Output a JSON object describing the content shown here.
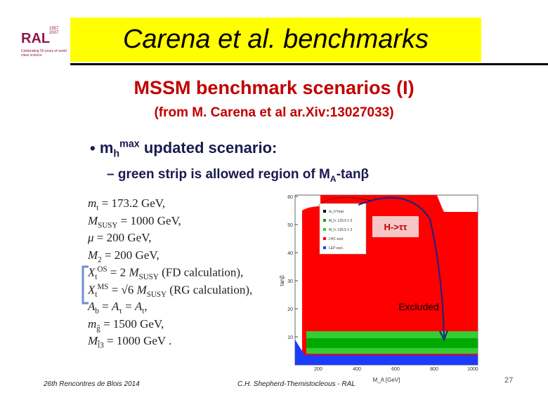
{
  "logo": {
    "name": "RAL",
    "years": "1957 2007",
    "tagline": "Celebrating 50 years of world class science"
  },
  "header": {
    "title": "Carena et al. benchmarks"
  },
  "slide": {
    "heading": "MSSM benchmark scenarios (I)",
    "source": "(from M. Carena et al ar.Xiv:13027033)",
    "bullet": {
      "symbol": "•",
      "parts": [
        {
          "t": "m",
          "sub": "h",
          "sup": "max"
        },
        {
          "t": " updated scenario:"
        }
      ]
    },
    "subbullet": {
      "symbol": "–",
      "parts": [
        {
          "t": "green strip is allowed region of M",
          "sub": "A"
        },
        {
          "t": "-tanβ"
        }
      ]
    },
    "equations": [
      [
        {
          "t": "m",
          "sub": "t",
          "i": true
        },
        {
          "t": " = 173.2 GeV,"
        }
      ],
      [
        {
          "t": "M",
          "sub": "SUSY",
          "i": true
        },
        {
          "t": " = 1000 GeV,"
        }
      ],
      [
        {
          "t": "μ",
          "i": true
        },
        {
          "t": " = 200 GeV,"
        }
      ],
      [
        {
          "t": "M",
          "sub": "2",
          "i": true
        },
        {
          "t": " = 200 GeV,"
        }
      ],
      [
        {
          "t": "X",
          "sub": "t",
          "sup": "OS",
          "i": true
        },
        {
          "t": " = 2 "
        },
        {
          "t": "M",
          "sub": "SUSY",
          "i": true
        },
        {
          "t": " (FD calculation),"
        }
      ],
      [
        {
          "t": "X",
          "sub": "t",
          "sup": "MS",
          "i": true
        },
        {
          "t": " = √6 "
        },
        {
          "t": "M",
          "sub": "SUSY",
          "i": true
        },
        {
          "t": " (RG calculation),"
        }
      ],
      [
        {
          "t": "A",
          "sub": "b",
          "i": true
        },
        {
          "t": " = "
        },
        {
          "t": "A",
          "sub": "τ",
          "i": true
        },
        {
          "t": " = "
        },
        {
          "t": "A",
          "sub": "t",
          "i": true
        },
        {
          "t": ","
        }
      ],
      [
        {
          "t": "m",
          "sub": "g̃",
          "i": true
        },
        {
          "t": " = 1500 GeV,"
        }
      ],
      [
        {
          "t": "M",
          "sub": "l̃3",
          "i": true
        },
        {
          "t": " = 1000 GeV ."
        }
      ]
    ]
  },
  "figure": {
    "y_label": "tanβ",
    "x_label": "M_A [GeV]",
    "yticks": [
      "10",
      "20",
      "30",
      "40",
      "50",
      "60"
    ],
    "xticks": [
      "200",
      "400",
      "600",
      "800",
      "1000"
    ],
    "legend": [
      "m_h^max",
      "M_h: 125.5 ± 3",
      "M_h: 125.5 ± 2",
      "LHC excl.",
      "LEP excl."
    ],
    "annotation_channel": "H->ττ",
    "annotation_excluded": "Excluded"
  },
  "footer": {
    "event": "26th Rencontres de Blois 2014",
    "author": "C.H. Shepherd-Themistocleous - RAL",
    "page": "27"
  }
}
